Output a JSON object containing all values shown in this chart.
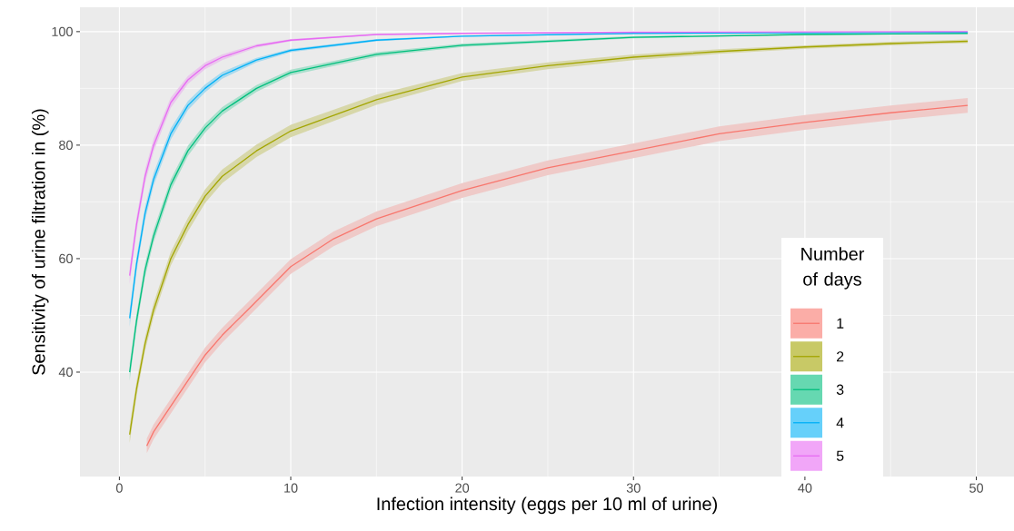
{
  "chart_data": {
    "type": "line",
    "xlabel": "Infection intensity (eggs per 10 ml of urine)",
    "ylabel": "Sensitivity of urine filtration in (%)",
    "legend_title": "Number of days",
    "xlim": [
      -2.3,
      52.2
    ],
    "ylim": [
      21.6,
      104.3
    ],
    "xticks": [
      0,
      10,
      20,
      30,
      40,
      50
    ],
    "yticks": [
      40,
      60,
      80,
      100
    ],
    "grid": true,
    "legend": "bottom right",
    "series": [
      {
        "name": "1",
        "color": "#f8766d",
        "x": [
          1.6,
          2,
          3,
          4,
          5,
          6,
          7.5,
          10,
          12.5,
          15,
          20,
          25,
          30,
          35,
          40,
          45,
          49.5
        ],
        "values": [
          27,
          29.5,
          34,
          38.5,
          43,
          46.5,
          51,
          58.6,
          63.5,
          67,
          72,
          76,
          79,
          82,
          84,
          85.7,
          87
        ],
        "lower": [
          25.7,
          28.2,
          32.7,
          37.2,
          41.7,
          45.2,
          49.7,
          57.3,
          62.2,
          65.7,
          70.7,
          74.7,
          77.7,
          80.7,
          82.7,
          84.4,
          85.7
        ],
        "upper": [
          28.3,
          30.8,
          35.3,
          39.8,
          44.3,
          47.8,
          52.3,
          59.9,
          64.8,
          68.3,
          73.3,
          77.3,
          80.3,
          83.3,
          85.3,
          87,
          88.3
        ]
      },
      {
        "name": "2",
        "color": "#a3a500",
        "x": [
          0.6,
          1,
          1.5,
          2,
          3,
          4,
          5,
          6,
          8,
          10,
          15,
          20,
          25,
          30,
          35,
          40,
          45,
          49.5
        ],
        "values": [
          29,
          37,
          45,
          51,
          60,
          66,
          71,
          74.5,
          79,
          82.5,
          88,
          92,
          94,
          95.5,
          96.5,
          97.3,
          97.9,
          98.3
        ],
        "lower": [
          27.5,
          35.7,
          43.8,
          49.8,
          58.8,
          64.8,
          69.8,
          73.3,
          77.9,
          81.4,
          87.1,
          91.3,
          93.4,
          95,
          96.1,
          97,
          97.6,
          98
        ],
        "upper": [
          30.5,
          38.3,
          46.2,
          52.2,
          61.2,
          67.2,
          72.2,
          75.7,
          80.1,
          83.6,
          88.9,
          92.7,
          94.6,
          96,
          96.9,
          97.6,
          98.2,
          98.6
        ]
      },
      {
        "name": "3",
        "color": "#00bf7d",
        "x": [
          0.6,
          1,
          1.5,
          2,
          3,
          4,
          5,
          6,
          8,
          10,
          15,
          20,
          30,
          40,
          49.5
        ],
        "values": [
          40,
          49,
          58,
          64,
          73,
          79,
          83,
          86,
          90,
          92.8,
          96,
          97.6,
          99,
          99.5,
          99.7
        ],
        "lower": [
          38.5,
          47.7,
          56.8,
          62.9,
          72,
          78.1,
          82.2,
          85.3,
          89.4,
          92.3,
          95.6,
          97.3,
          98.8,
          99.4,
          99.6
        ],
        "upper": [
          41.5,
          50.3,
          59.2,
          65.1,
          74,
          79.9,
          83.8,
          86.7,
          90.6,
          93.3,
          96.4,
          97.9,
          99.2,
          99.6,
          99.8
        ]
      },
      {
        "name": "4",
        "color": "#00b0f6",
        "x": [
          0.6,
          1,
          1.5,
          2,
          3,
          4,
          5,
          6,
          8,
          10,
          15,
          20,
          30,
          49.5
        ],
        "values": [
          49.5,
          59,
          68,
          74,
          82,
          87,
          90,
          92.3,
          95,
          96.7,
          98.5,
          99.2,
          99.7,
          99.9
        ],
        "lower": [
          48,
          57.7,
          66.8,
          72.9,
          81,
          86.2,
          89.3,
          91.7,
          94.6,
          96.4,
          98.3,
          99.1,
          99.6,
          99.85
        ],
        "upper": [
          51,
          60.3,
          69.2,
          75.1,
          83,
          87.8,
          90.7,
          92.9,
          95.4,
          97,
          98.7,
          99.3,
          99.8,
          99.95
        ]
      },
      {
        "name": "5",
        "color": "#e76bf3",
        "x": [
          0.6,
          1,
          1.5,
          2,
          3,
          4,
          5,
          6,
          8,
          10,
          15,
          20,
          30,
          49.5
        ],
        "values": [
          57,
          66,
          74.5,
          80,
          87.5,
          91.5,
          94,
          95.5,
          97.5,
          98.5,
          99.5,
          99.7,
          99.9,
          100
        ],
        "lower": [
          55.5,
          64.7,
          73.3,
          78.9,
          86.6,
          90.8,
          93.4,
          95,
          97.2,
          98.3,
          99.4,
          99.6,
          99.85,
          99.95
        ],
        "upper": [
          58.5,
          67.3,
          75.7,
          81.1,
          88.4,
          92.2,
          94.6,
          96,
          97.8,
          98.7,
          99.6,
          99.8,
          99.95,
          100
        ]
      }
    ]
  }
}
